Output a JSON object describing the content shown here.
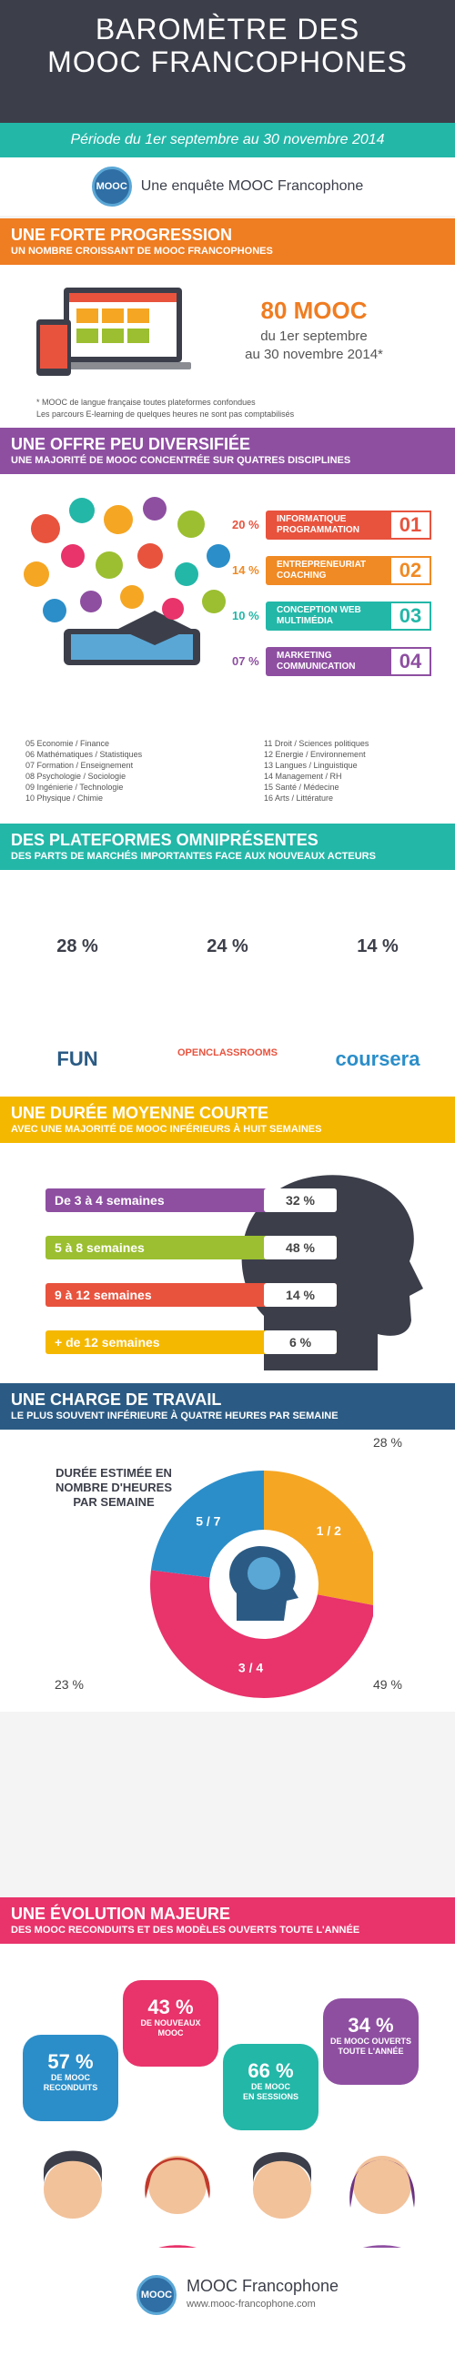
{
  "header": {
    "title_line1": "BAROMÈTRE DES",
    "title_line2": "MOOC FRANCOPHONES",
    "period": "Période du 1er septembre au 30 novembre 2014",
    "survey": "Une enquête MOOC Francophone",
    "logo_text": "MOOC"
  },
  "s1": {
    "title": "UNE FORTE PROGRESSION",
    "subtitle": "UN NOMBRE CROISSANT DE MOOC FRANCOPHONES",
    "count": "80 MOOC",
    "date_line1": "du 1er septembre",
    "date_line2": "au 30 novembre 2014*",
    "note1": "* MOOC de langue française toutes plateformes confondues",
    "note2": "Les parcours E-learning de quelques heures ne sont pas comptabilisés",
    "color": "#ef7d22"
  },
  "s2": {
    "title": "UNE OFFRE PEU DIVERSIFIÉE",
    "subtitle": "UNE MAJORITÉ DE MOOC CONCENTRÉE SUR QUATRES DISCIPLINES",
    "color": "#8e4fa1",
    "disciplines": [
      {
        "pct": "20 %",
        "label1": "INFORMATIQUE",
        "label2": "PROGRAMMATION",
        "num": "01",
        "color": "#e8533e"
      },
      {
        "pct": "14 %",
        "label1": "ENTREPRENEURIAT",
        "label2": "COACHING",
        "num": "02",
        "color": "#f08a24"
      },
      {
        "pct": "10 %",
        "label1": "CONCEPTION WEB",
        "label2": "MULTIMÉDIA",
        "num": "03",
        "color": "#23b7a8"
      },
      {
        "pct": "07 %",
        "label1": "MARKETING",
        "label2": "COMMUNICATION",
        "num": "04",
        "color": "#8e4fa1"
      }
    ],
    "others_left": [
      "05 Economie / Finance",
      "06 Mathématiques / Statistiques",
      "07 Formation / Enseignement",
      "08 Psychologie / Sociologie",
      "09 Ingénierie / Technologie",
      "10 Physique / Chimie"
    ],
    "others_right": [
      "11 Droit / Sciences politiques",
      "12 Energie / Environnement",
      "13 Langues / Linguistique",
      "14 Management / RH",
      "15 Santé / Médecine",
      "16 Arts / Littérature"
    ]
  },
  "s3": {
    "title": "DES PLATEFORMES OMNIPRÉSENTES",
    "subtitle": "DES PARTS DE MARCHÉS IMPORTANTES FACE AUX NOUVEAUX ACTEURS",
    "color": "#23b7a8",
    "platforms": [
      {
        "pct": "28 %",
        "name": "FUN",
        "wreath": "#d4a017"
      },
      {
        "pct": "24 %",
        "name": "OPENCLASSROOMS",
        "wreath": "#b9b9b9"
      },
      {
        "pct": "14 %",
        "name": "coursera",
        "wreath": "#c87533"
      }
    ]
  },
  "s4": {
    "title": "UNE DURÉE MOYENNE COURTE",
    "subtitle": "AVEC UNE MAJORITÉ DE MOOC INFÉRIEURS À HUIT SEMAINES",
    "color": "#f5b800",
    "durations": [
      {
        "label": "De 3 à 4 semaines",
        "pct": "32 %",
        "color": "#8e4fa1"
      },
      {
        "label": "5 à 8 semaines",
        "pct": "48 %",
        "color": "#9bbf30"
      },
      {
        "label": "9 à 12 semaines",
        "pct": "14 %",
        "color": "#e8533e"
      },
      {
        "label": "+ de 12 semaines",
        "pct": "6 %",
        "color": "#f5b800"
      }
    ]
  },
  "s5": {
    "title": "UNE CHARGE DE TRAVAIL",
    "subtitle": "LE PLUS SOUVENT INFÉRIEURE À QUATRE HEURES PAR SEMAINE",
    "color": "#2b5b84",
    "legend1": "DURÉE ESTIMÉE EN",
    "legend2": "NOMBRE D'HEURES",
    "legend3": "PAR SEMAINE",
    "slices": [
      {
        "label": "1 / 2",
        "pct": "28 %",
        "value": 28,
        "color": "#f5a623"
      },
      {
        "label": "3 / 4",
        "pct": "49 %",
        "value": 49,
        "color": "#e8336b"
      },
      {
        "label": "5 / 7",
        "pct": "23 %",
        "value": 23,
        "color": "#2b8ec9"
      }
    ]
  },
  "s6": {
    "title": "UNE ÉVOLUTION MAJEURE",
    "subtitle": "DES MOOC RECONDUITS ET DES MODÈLES OUVERTS TOUTE L'ANNÉE",
    "color": "#e8336b",
    "stats": [
      {
        "pct": "57 %",
        "l1": "DE MOOC",
        "l2": "RECONDUITS",
        "color": "#2b8ec9"
      },
      {
        "pct": "43 %",
        "l1": "DE NOUVEAUX",
        "l2": "MOOC",
        "color": "#e8336b"
      },
      {
        "pct": "66 %",
        "l1": "DE MOOC",
        "l2": "EN SESSIONS",
        "color": "#23b7a8"
      },
      {
        "pct": "34 %",
        "l1": "DE MOOC OUVERTS",
        "l2": "TOUTE L'ANNÉE",
        "color": "#8e4fa1"
      }
    ]
  },
  "footer": {
    "name": "MOOC Francophone",
    "url": "www.mooc-francophone.com"
  }
}
